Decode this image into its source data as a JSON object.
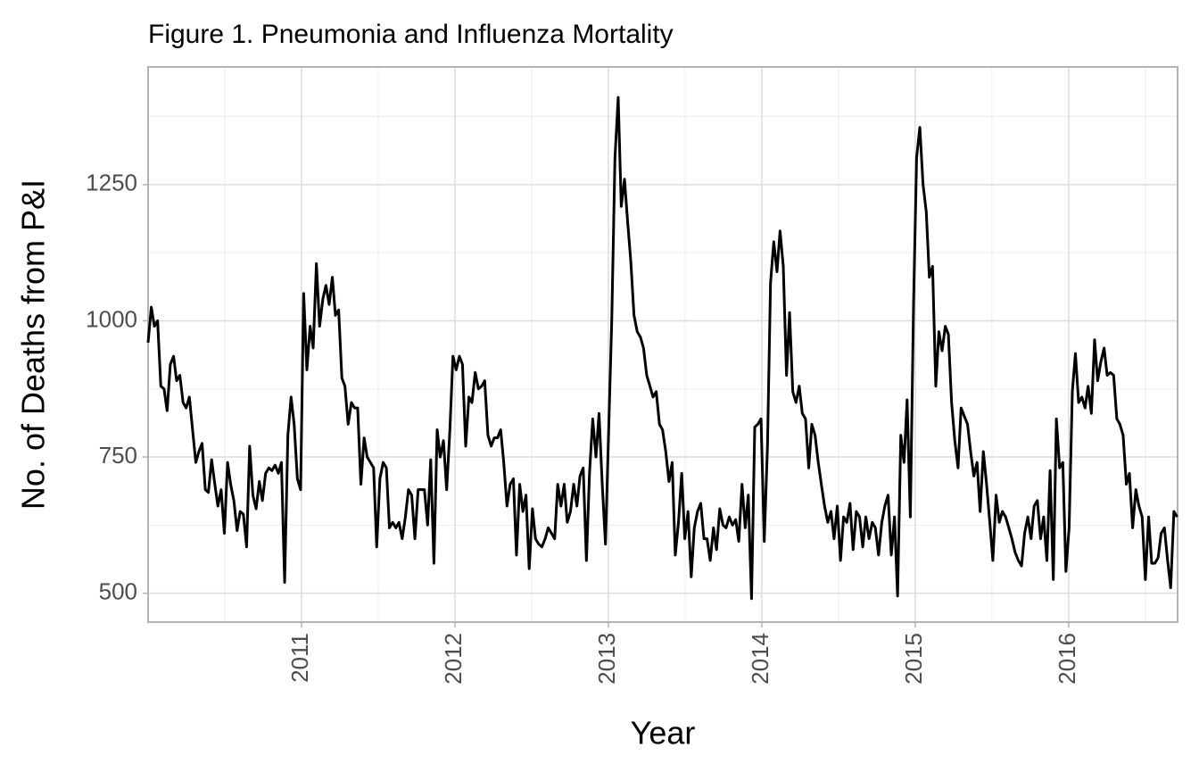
{
  "chart_data": {
    "type": "line",
    "title": "Figure 1. Pneumonia and Influenza Mortality",
    "x_label": "Year",
    "y_label": "No. of Deaths from P&I",
    "color": "#000000",
    "grid": true,
    "minor_grid": true,
    "xlim": [
      2010,
      2016.71
    ],
    "xticks": [
      2011,
      2012,
      2013,
      2014,
      2015,
      2016
    ],
    "ylim": [
      447,
      1466
    ],
    "yticks": [
      500,
      750,
      1000,
      1250
    ],
    "x": [
      2010,
      2010.021,
      2010.041,
      2010.062,
      2010.083,
      2010.104,
      2010.124,
      2010.145,
      2010.166,
      2010.186,
      2010.207,
      2010.228,
      2010.248,
      2010.269,
      2010.29,
      2010.311,
      2010.331,
      2010.352,
      2010.373,
      2010.393,
      2010.414,
      2010.435,
      2010.455,
      2010.476,
      2010.497,
      2010.518,
      2010.538,
      2010.559,
      2010.58,
      2010.6,
      2010.621,
      2010.642,
      2010.662,
      2010.683,
      2010.704,
      2010.725,
      2010.745,
      2010.766,
      2010.787,
      2010.807,
      2010.828,
      2010.849,
      2010.869,
      2010.89,
      2010.911,
      2010.932,
      2010.952,
      2010.973,
      2010.994,
      2011.014,
      2011.035,
      2011.056,
      2011.076,
      2011.097,
      2011.118,
      2011.139,
      2011.159,
      2011.18,
      2011.201,
      2011.221,
      2011.242,
      2011.263,
      2011.283,
      2011.304,
      2011.325,
      2011.346,
      2011.366,
      2011.387,
      2011.408,
      2011.428,
      2011.449,
      2011.47,
      2011.49,
      2011.511,
      2011.532,
      2011.553,
      2011.573,
      2011.594,
      2011.615,
      2011.635,
      2011.656,
      2011.677,
      2011.697,
      2011.718,
      2011.739,
      2011.76,
      2011.78,
      2011.801,
      2011.822,
      2011.842,
      2011.863,
      2011.884,
      2011.904,
      2011.925,
      2011.946,
      2011.967,
      2011.987,
      2012.008,
      2012.029,
      2012.049,
      2012.07,
      2012.091,
      2012.111,
      2012.132,
      2012.153,
      2012.174,
      2012.194,
      2012.215,
      2012.236,
      2012.256,
      2012.277,
      2012.298,
      2012.318,
      2012.339,
      2012.36,
      2012.381,
      2012.401,
      2012.422,
      2012.443,
      2012.463,
      2012.484,
      2012.505,
      2012.525,
      2012.546,
      2012.567,
      2012.588,
      2012.608,
      2012.629,
      2012.65,
      2012.67,
      2012.691,
      2012.712,
      2012.732,
      2012.753,
      2012.774,
      2012.795,
      2012.815,
      2012.836,
      2012.857,
      2012.877,
      2012.898,
      2012.919,
      2012.939,
      2012.96,
      2012.981,
      2013.002,
      2013.022,
      2013.043,
      2013.064,
      2013.084,
      2013.105,
      2013.126,
      2013.146,
      2013.167,
      2013.188,
      2013.209,
      2013.229,
      2013.25,
      2013.271,
      2013.291,
      2013.312,
      2013.333,
      2013.353,
      2013.374,
      2013.395,
      2013.416,
      2013.436,
      2013.457,
      2013.478,
      2013.498,
      2013.519,
      2013.54,
      2013.56,
      2013.581,
      2013.602,
      2013.623,
      2013.643,
      2013.664,
      2013.685,
      2013.705,
      2013.726,
      2013.747,
      2013.767,
      2013.788,
      2013.809,
      2013.83,
      2013.85,
      2013.871,
      2013.892,
      2013.912,
      2013.933,
      2013.954,
      2013.974,
      2013.995,
      2014.016,
      2014.037,
      2014.057,
      2014.078,
      2014.099,
      2014.119,
      2014.14,
      2014.161,
      2014.181,
      2014.202,
      2014.223,
      2014.244,
      2014.264,
      2014.285,
      2014.306,
      2014.326,
      2014.347,
      2014.368,
      2014.388,
      2014.409,
      2014.43,
      2014.451,
      2014.471,
      2014.492,
      2014.513,
      2014.533,
      2014.554,
      2014.575,
      2014.595,
      2014.616,
      2014.637,
      2014.658,
      2014.678,
      2014.699,
      2014.72,
      2014.74,
      2014.761,
      2014.782,
      2014.802,
      2014.823,
      2014.844,
      2014.865,
      2014.885,
      2014.906,
      2014.927,
      2014.947,
      2014.968,
      2014.989,
      2015.009,
      2015.03,
      2015.051,
      2015.072,
      2015.092,
      2015.113,
      2015.134,
      2015.154,
      2015.175,
      2015.196,
      2015.216,
      2015.237,
      2015.258,
      2015.279,
      2015.299,
      2015.32,
      2015.341,
      2015.361,
      2015.382,
      2015.403,
      2015.423,
      2015.444,
      2015.465,
      2015.486,
      2015.506,
      2015.527,
      2015.548,
      2015.568,
      2015.589,
      2015.61,
      2015.63,
      2015.651,
      2015.672,
      2015.693,
      2015.713,
      2015.734,
      2015.755,
      2015.775,
      2015.796,
      2015.817,
      2015.837,
      2015.858,
      2015.879,
      2015.9,
      2015.92,
      2015.941,
      2015.962,
      2015.982,
      2016.003,
      2016.024,
      2016.044,
      2016.065,
      2016.086,
      2016.107,
      2016.127,
      2016.148,
      2016.169,
      2016.189,
      2016.21,
      2016.231,
      2016.251,
      2016.272,
      2016.293,
      2016.314,
      2016.334,
      2016.355,
      2016.376,
      2016.396,
      2016.417,
      2016.438,
      2016.458,
      2016.479,
      2016.5,
      2016.521,
      2016.541,
      2016.562,
      2016.583,
      2016.603,
      2016.624,
      2016.645,
      2016.665,
      2016.686,
      2016.707
    ],
    "values": [
      960,
      1025,
      990,
      1000,
      880,
      875,
      835,
      920,
      935,
      890,
      900,
      850,
      840,
      860,
      800,
      740,
      760,
      775,
      690,
      685,
      745,
      700,
      660,
      690,
      610,
      740,
      700,
      670,
      615,
      650,
      645,
      585,
      770,
      680,
      655,
      705,
      670,
      720,
      730,
      725,
      735,
      720,
      740,
      520,
      790,
      860,
      810,
      710,
      690,
      1050,
      910,
      990,
      950,
      1105,
      990,
      1040,
      1065,
      1030,
      1080,
      1010,
      1020,
      895,
      880,
      810,
      850,
      840,
      840,
      700,
      785,
      750,
      740,
      730,
      585,
      710,
      740,
      730,
      620,
      630,
      620,
      630,
      600,
      640,
      690,
      680,
      600,
      690,
      690,
      690,
      625,
      745,
      555,
      800,
      750,
      780,
      690,
      800,
      935,
      910,
      935,
      920,
      770,
      860,
      850,
      905,
      875,
      880,
      890,
      790,
      770,
      785,
      785,
      800,
      740,
      660,
      700,
      710,
      570,
      700,
      650,
      680,
      545,
      655,
      600,
      590,
      585,
      600,
      620,
      610,
      600,
      700,
      660,
      700,
      630,
      650,
      700,
      660,
      715,
      730,
      560,
      720,
      820,
      750,
      830,
      700,
      590,
      800,
      1000,
      1300,
      1410,
      1210,
      1260,
      1180,
      1110,
      1010,
      980,
      970,
      950,
      900,
      880,
      860,
      870,
      810,
      800,
      760,
      705,
      740,
      570,
      630,
      720,
      600,
      650,
      530,
      620,
      650,
      665,
      600,
      600,
      560,
      620,
      580,
      655,
      625,
      620,
      640,
      625,
      635,
      595,
      700,
      620,
      680,
      490,
      805,
      810,
      820,
      595,
      770,
      1070,
      1145,
      1090,
      1165,
      1100,
      900,
      1015,
      870,
      850,
      880,
      830,
      820,
      730,
      810,
      790,
      740,
      700,
      660,
      630,
      650,
      600,
      660,
      560,
      640,
      630,
      665,
      580,
      650,
      640,
      585,
      640,
      600,
      630,
      620,
      570,
      630,
      660,
      680,
      570,
      640,
      495,
      790,
      740,
      855,
      640,
      1030,
      1300,
      1355,
      1250,
      1200,
      1080,
      1100,
      880,
      980,
      945,
      990,
      975,
      850,
      780,
      730,
      840,
      825,
      810,
      760,
      715,
      740,
      650,
      760,
      700,
      630,
      560,
      680,
      630,
      650,
      640,
      620,
      600,
      575,
      560,
      550,
      610,
      640,
      600,
      660,
      670,
      600,
      640,
      560,
      725,
      525,
      820,
      730,
      740,
      540,
      620,
      870,
      940,
      850,
      860,
      840,
      880,
      830,
      965,
      890,
      925,
      950,
      900,
      905,
      900,
      820,
      810,
      790,
      700,
      720,
      620,
      690,
      660,
      640,
      525,
      640,
      555,
      555,
      565,
      610,
      620,
      560,
      510,
      650,
      640
    ]
  }
}
